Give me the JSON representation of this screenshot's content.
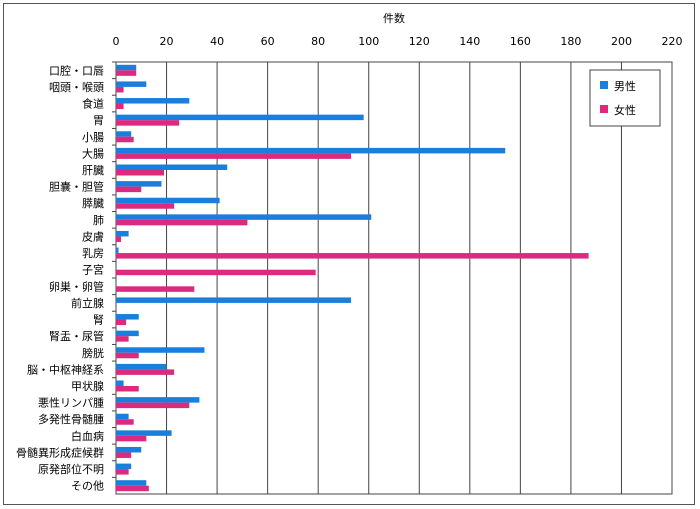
{
  "chart_data": {
    "type": "bar",
    "orientation": "horizontal",
    "title": "",
    "xlabel": "件数",
    "ylabel": "",
    "xlim": [
      0,
      220
    ],
    "xticks": [
      0,
      20,
      40,
      60,
      80,
      100,
      120,
      140,
      160,
      180,
      200,
      220
    ],
    "grid": true,
    "legend_position": "top-right",
    "categories": [
      "口腔・口唇",
      "咽頭・喉頭",
      "食道",
      "胃",
      "小腸",
      "大腸",
      "肝臓",
      "胆嚢・胆管",
      "膵臓",
      "肺",
      "皮膚",
      "乳房",
      "子宮",
      "卵巣・卵管",
      "前立腺",
      "腎",
      "腎盂・尿管",
      "膀胱",
      "脳・中枢神経系",
      "甲状腺",
      "悪性リンパ腫",
      "多発性骨髄腫",
      "白血病",
      "骨髄異形成症候群",
      "原発部位不明",
      "その他"
    ],
    "series": [
      {
        "name": "男性",
        "color": "#1a7fdc",
        "values": [
          8,
          12,
          29,
          98,
          6,
          154,
          44,
          18,
          41,
          101,
          5,
          1,
          0,
          0,
          93,
          9,
          9,
          35,
          20,
          3,
          33,
          5,
          22,
          10,
          6,
          12
        ]
      },
      {
        "name": "女性",
        "color": "#dc2a7f",
        "values": [
          8,
          3,
          3,
          25,
          7,
          93,
          19,
          10,
          23,
          52,
          2,
          187,
          79,
          31,
          0,
          4,
          5,
          9,
          23,
          9,
          29,
          7,
          12,
          6,
          5,
          13
        ]
      }
    ]
  }
}
